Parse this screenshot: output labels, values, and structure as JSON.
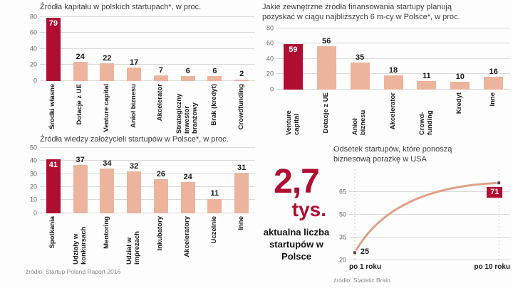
{
  "colors": {
    "highlight": "#b00d33",
    "bar": "#ecb49c",
    "line": "#dfa189",
    "marker": "#4a4a4a"
  },
  "chart_data": [
    {
      "type": "bar",
      "title": "Źródła kapitału w polskich startupach*, w proc.",
      "categories": [
        "Środki własne",
        "Dotacje z UE",
        "Venture capital",
        "Anioł biznesu",
        "Akcelerator",
        "Strategiczny inwestor branżowy",
        "Brak (kredyt)",
        "Crowdfunding"
      ],
      "values": [
        79,
        24,
        22,
        17,
        7,
        6,
        6,
        2
      ],
      "highlight_index": 0,
      "ylim": [
        0,
        80
      ],
      "yticks": [
        0,
        20,
        40,
        60,
        80
      ],
      "grid": true,
      "legend": "none"
    },
    {
      "type": "bar",
      "title": "Jakie zewnętrzne źródła finansowania startupy planują pozyskać w ciągu najbliższych 6 m-cy w Polsce*, w proc.",
      "categories": [
        "Venture capital",
        "Dotacje z UE",
        "Anioł biznesu",
        "Akcelerator",
        "Crowd-funding",
        "Kredyt",
        "Inne"
      ],
      "values": [
        59,
        56,
        35,
        18,
        11,
        10,
        16
      ],
      "highlight_index": 0,
      "ylim": [
        0,
        80
      ],
      "yticks": [
        0,
        20,
        40,
        60,
        80
      ],
      "grid": true,
      "legend": "none"
    },
    {
      "type": "bar",
      "title": "Źródła wiedzy założycieli startupów w Polsce*, w proc.",
      "categories": [
        "Spotkania",
        "Udziały w konkursach",
        "Mentoring",
        "Udział w imprezach",
        "Inkubatory",
        "Akceleratory",
        "Uczelnie",
        "Inne"
      ],
      "values": [
        41,
        37,
        34,
        32,
        26,
        24,
        11,
        31
      ],
      "highlight_index": 0,
      "ylim": [
        0,
        50
      ],
      "yticks": [
        0,
        10,
        20,
        30,
        40,
        50
      ],
      "grid": true,
      "legend": "none",
      "source": "źródło: Startup Poland Raport 2016"
    },
    {
      "type": "line",
      "title": "Odsetek startupów, które ponoszą biznesową porażkę w USA",
      "categories": [
        "po 1 roku",
        "po 10 roku"
      ],
      "values": [
        25,
        71
      ],
      "highlight_index": 1,
      "ylim": [
        20,
        80
      ],
      "yticks": [
        20,
        35,
        50,
        65
      ],
      "grid": true,
      "legend": "none",
      "source": "źródło: Statistic Brain"
    }
  ],
  "stat": {
    "number": "2,7",
    "unit": "tys.",
    "caption": "aktualna liczba startupów w Polsce"
  }
}
